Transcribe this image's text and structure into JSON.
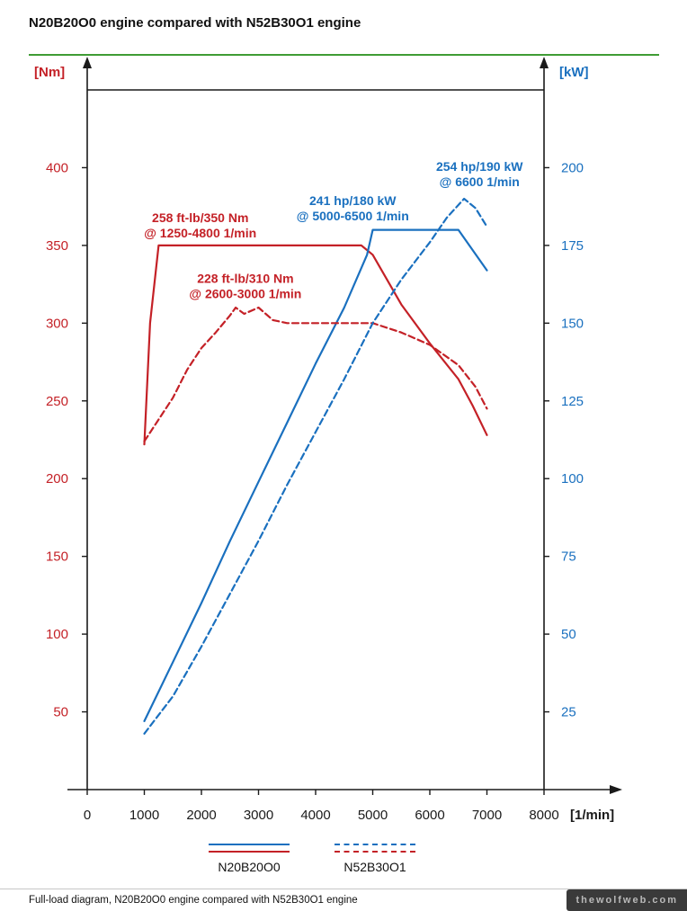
{
  "page": {
    "title": "N20B20O0 engine compared with N52B30O1 engine",
    "footer": "Full-load diagram, N20B20O0 engine compared with N52B30O1 engine",
    "watermark": "thewolfweb.com",
    "accent_green": "#3f9c35"
  },
  "chart_data": {
    "type": "line",
    "title": "N20B20O0 engine compared with N52B30O1 engine",
    "x_axis": {
      "label": "[1/min]",
      "range": [
        0,
        8000
      ],
      "ticks": [
        0,
        1000,
        2000,
        3000,
        4000,
        5000,
        6000,
        7000,
        8000
      ]
    },
    "y_axis_left": {
      "label": "[Nm]",
      "color": "#c42127",
      "range": [
        0,
        450
      ],
      "ticks": [
        50,
        100,
        150,
        200,
        250,
        300,
        350,
        400
      ]
    },
    "y_axis_right": {
      "label": "[kW]",
      "color": "#1a70bf",
      "range": [
        0,
        225
      ],
      "ticks": [
        25,
        50,
        75,
        100,
        125,
        150,
        175,
        200
      ]
    },
    "series": [
      {
        "name": "N20B20O0 torque (Nm)",
        "axis": "left",
        "style": "solid",
        "color": "#c42127",
        "points": [
          [
            1000,
            222
          ],
          [
            1100,
            300
          ],
          [
            1250,
            350
          ],
          [
            2000,
            350
          ],
          [
            3000,
            350
          ],
          [
            4000,
            350
          ],
          [
            4800,
            350
          ],
          [
            5000,
            344
          ],
          [
            5500,
            312
          ],
          [
            6000,
            287
          ],
          [
            6500,
            264
          ],
          [
            6750,
            247
          ],
          [
            7000,
            228
          ]
        ]
      },
      {
        "name": "N20B20O0 power (kW)",
        "axis": "right",
        "style": "solid",
        "color": "#1a70bf",
        "points": [
          [
            1000,
            22
          ],
          [
            1500,
            41
          ],
          [
            2000,
            60
          ],
          [
            2500,
            80
          ],
          [
            3000,
            99
          ],
          [
            3500,
            118
          ],
          [
            4000,
            137
          ],
          [
            4500,
            155
          ],
          [
            4900,
            172
          ],
          [
            5000,
            180
          ],
          [
            5500,
            180
          ],
          [
            6000,
            180
          ],
          [
            6500,
            180
          ],
          [
            7000,
            167
          ]
        ]
      },
      {
        "name": "N52B30O1 torque (Nm)",
        "axis": "left",
        "style": "dashed",
        "color": "#c42127",
        "points": [
          [
            1000,
            224
          ],
          [
            1250,
            238
          ],
          [
            1500,
            252
          ],
          [
            1750,
            270
          ],
          [
            2000,
            284
          ],
          [
            2250,
            294
          ],
          [
            2500,
            305
          ],
          [
            2600,
            310
          ],
          [
            2750,
            306
          ],
          [
            3000,
            310
          ],
          [
            3250,
            302
          ],
          [
            3500,
            300
          ],
          [
            4000,
            300
          ],
          [
            4500,
            300
          ],
          [
            5000,
            300
          ],
          [
            5500,
            294
          ],
          [
            6000,
            286
          ],
          [
            6500,
            273
          ],
          [
            6800,
            259
          ],
          [
            7000,
            245
          ]
        ]
      },
      {
        "name": "N52B30O1 power (kW)",
        "axis": "right",
        "style": "dashed",
        "color": "#1a70bf",
        "points": [
          [
            1000,
            18
          ],
          [
            1500,
            30
          ],
          [
            2000,
            46
          ],
          [
            2500,
            63
          ],
          [
            3000,
            80
          ],
          [
            3500,
            98
          ],
          [
            4000,
            115
          ],
          [
            4500,
            132
          ],
          [
            5000,
            150
          ],
          [
            5500,
            164
          ],
          [
            6000,
            176
          ],
          [
            6300,
            184
          ],
          [
            6600,
            190
          ],
          [
            6800,
            187
          ],
          [
            7000,
            181
          ]
        ]
      }
    ],
    "annotations": [
      {
        "lines": [
          "258 ft-lb/350 Nm",
          "@ 1250-4800 1/min"
        ],
        "axis": "left",
        "rpm": 1980,
        "value": 363,
        "color": "#c42127"
      },
      {
        "lines": [
          "228 ft-lb/310 Nm",
          "@ 2600-3000 1/min"
        ],
        "axis": "left",
        "rpm": 2770,
        "value": 324,
        "color": "#c42127"
      },
      {
        "lines": [
          "241 hp/180 kW",
          "@ 5000-6500 1/min"
        ],
        "axis": "right",
        "rpm": 4650,
        "value": 187,
        "color": "#1a70bf"
      },
      {
        "lines": [
          "254 hp/190 kW",
          "@ 6600 1/min"
        ],
        "axis": "right",
        "rpm": 6870,
        "value": 198,
        "color": "#1a70bf"
      }
    ],
    "legend": [
      {
        "label": "N20B20O0",
        "style": "solid"
      },
      {
        "label": "N52B30O1",
        "style": "dashed"
      }
    ],
    "grid": false,
    "legend_position": "bottom"
  }
}
